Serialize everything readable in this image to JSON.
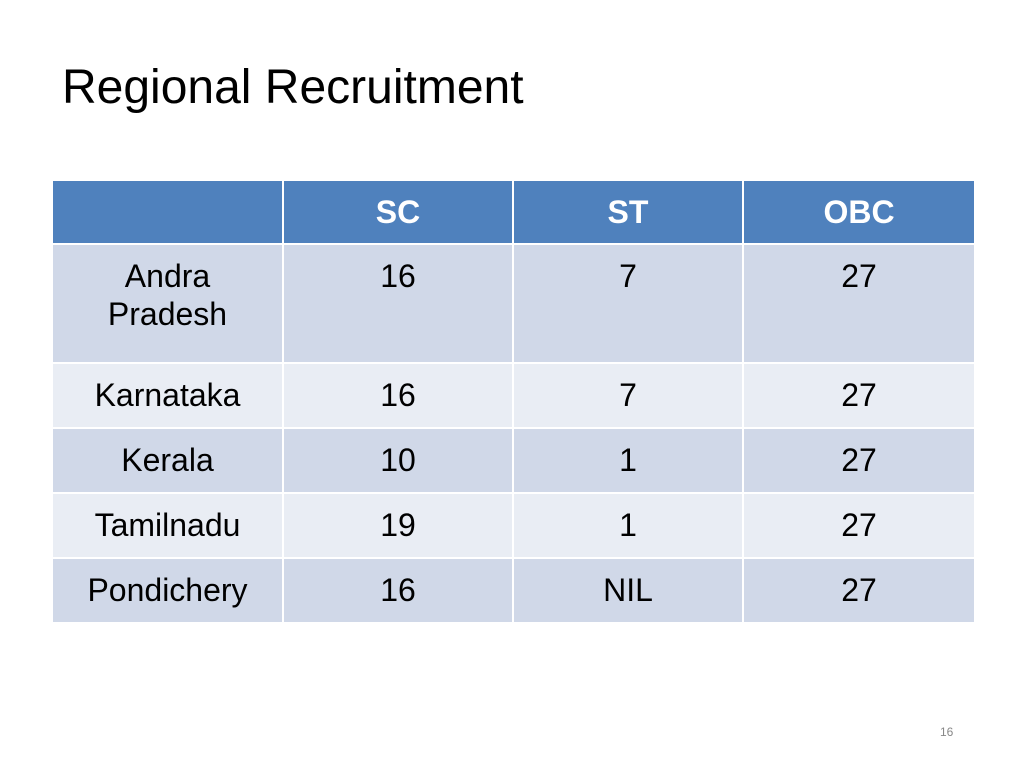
{
  "header": {
    "title": "Regional Recruitment"
  },
  "table": {
    "columns": [
      "SC",
      "ST",
      "OBC"
    ],
    "rows": [
      [
        "Andra Pradesh",
        16,
        7,
        27
      ],
      [
        "Karnataka",
        16,
        7,
        27
      ],
      [
        "Kerala",
        10,
        1,
        27
      ],
      [
        "Tamilnadu",
        19,
        1,
        27
      ],
      [
        "Pondichery",
        16,
        "NIL",
        27
      ]
    ]
  },
  "footer": {
    "page_number": "16"
  }
}
